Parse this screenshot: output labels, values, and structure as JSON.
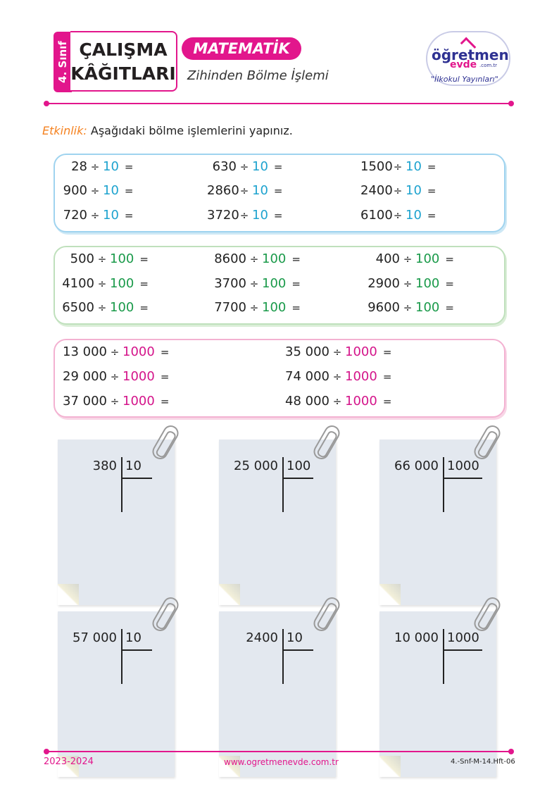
{
  "header": {
    "grade": "4. Sınıf",
    "title_line1": "ÇALIŞMA",
    "title_line2": "KÂĞITLARI",
    "subject": "MATEMATİK",
    "topic": "Zihinden Bölme İşlemi"
  },
  "logo": {
    "line1": "öğretmen",
    "line2": "evde",
    "domain": ".com.tr",
    "slogan": "\"İlkokul Yayınları\""
  },
  "instruction": {
    "tag": "Etkinlik:",
    "text": "Aşağıdaki bölme işlemlerini yapınız."
  },
  "symbols": {
    "divide": "÷",
    "equals": "="
  },
  "box_tens": {
    "divisor": "10",
    "color": "#1ea3cf",
    "items": [
      "28",
      "630",
      "1500",
      "900",
      "2860",
      "2400",
      "720",
      "3720",
      "6100"
    ]
  },
  "box_hundreds": {
    "divisor": "100",
    "color": "#1a9a4a",
    "items": [
      "500",
      "8600",
      "400",
      "4100",
      "3700",
      "2900",
      "6500",
      "7700",
      "9600"
    ]
  },
  "box_thousands": {
    "divisor": "1000",
    "color": "#d4148a",
    "items": [
      "13 000",
      "35 000",
      "29 000",
      "74 000",
      "37 000",
      "48 000"
    ]
  },
  "long_divisions": [
    {
      "dividend": "380",
      "divisor": "10"
    },
    {
      "dividend": "25 000",
      "divisor": "100"
    },
    {
      "dividend": "66 000",
      "divisor": "1000"
    },
    {
      "dividend": "57 000",
      "divisor": "10"
    },
    {
      "dividend": "2400",
      "divisor": "10"
    },
    {
      "dividend": "10 000",
      "divisor": "1000"
    }
  ],
  "footer": {
    "year": "2023-2024",
    "url": "www.ogretmenevde.com.tr",
    "code": "4.-Snf-M-14.Hft-06"
  }
}
